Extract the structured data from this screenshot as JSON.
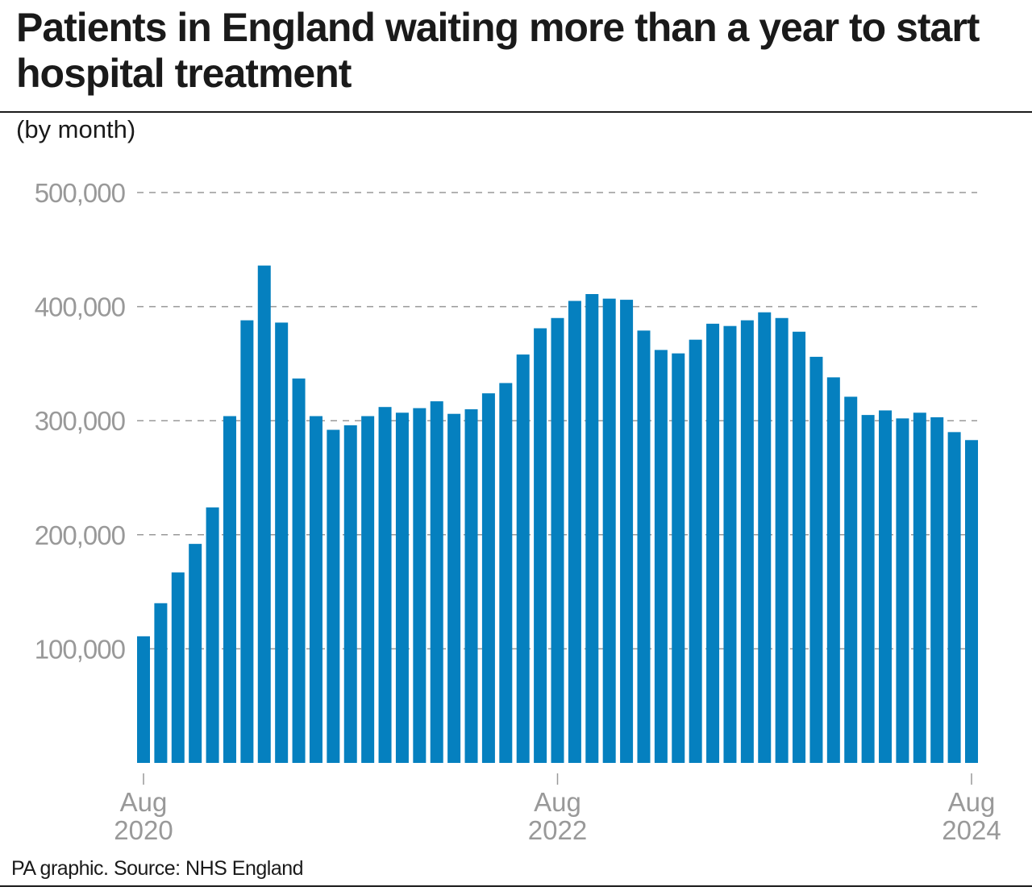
{
  "chart_data": {
    "type": "bar",
    "title": "Patients in England waiting more than a year to start hospital treatment",
    "subtitle": "(by month)",
    "source": "PA graphic. Source: NHS England",
    "ylim": [
      0,
      500000
    ],
    "yticks": [
      "100,000",
      "200,000",
      "300,000",
      "400,000",
      "500,000"
    ],
    "ytick_values": [
      100000,
      200000,
      300000,
      400000,
      500000
    ],
    "grid": "horizontal dashed",
    "xticks": [
      {
        "index": 0,
        "line1": "Aug",
        "line2": "2020"
      },
      {
        "index": 24,
        "line1": "Aug",
        "line2": "2022"
      },
      {
        "index": 48,
        "line1": "Aug",
        "line2": "2024"
      }
    ],
    "bar_color": "#0580bf",
    "categories": [
      "Aug 2020",
      "Sep 2020",
      "Oct 2020",
      "Nov 2020",
      "Dec 2020",
      "Jan 2021",
      "Feb 2021",
      "Mar 2021",
      "Apr 2021",
      "May 2021",
      "Jun 2021",
      "Jul 2021",
      "Aug 2021",
      "Sep 2021",
      "Oct 2021",
      "Nov 2021",
      "Dec 2021",
      "Jan 2022",
      "Feb 2022",
      "Mar 2022",
      "Apr 2022",
      "May 2022",
      "Jun 2022",
      "Jul 2022",
      "Aug 2022",
      "Sep 2022",
      "Oct 2022",
      "Nov 2022",
      "Dec 2022",
      "Jan 2023",
      "Feb 2023",
      "Mar 2023",
      "Apr 2023",
      "May 2023",
      "Jun 2023",
      "Jul 2023",
      "Aug 2023",
      "Sep 2023",
      "Oct 2023",
      "Nov 2023",
      "Dec 2023",
      "Jan 2024",
      "Feb 2024",
      "Mar 2024",
      "Apr 2024",
      "May 2024",
      "Jun 2024",
      "Jul 2024",
      "Aug 2024"
    ],
    "values": [
      111000,
      140000,
      167000,
      192000,
      224000,
      304000,
      388000,
      436000,
      386000,
      337000,
      304000,
      292000,
      296000,
      304000,
      312000,
      307000,
      311000,
      317000,
      306000,
      310000,
      324000,
      333000,
      358000,
      381000,
      390000,
      405000,
      411000,
      407000,
      406000,
      379000,
      362000,
      359000,
      371000,
      385000,
      383000,
      388000,
      395000,
      390000,
      378000,
      356000,
      338000,
      321000,
      305000,
      309000,
      302000,
      307000,
      303000,
      290000,
      283000
    ]
  }
}
